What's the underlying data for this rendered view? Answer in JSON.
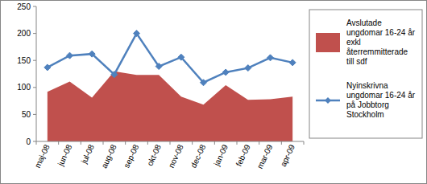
{
  "chart_data": {
    "type": "line",
    "categories": [
      "maj-08",
      "jun-08",
      "jul-08",
      "aug-08",
      "sep-08",
      "okt-08",
      "nov-08",
      "dec-08",
      "jan-09",
      "feb-09",
      "mar-09",
      "apr-09"
    ],
    "series": [
      {
        "name": "Avslutade ungdomar 16-24 år exkl återremmitterade till sdf",
        "type": "area",
        "color": "#c0504d",
        "values": [
          92,
          111,
          81,
          130,
          123,
          123,
          83,
          68,
          104,
          77,
          78,
          83
        ]
      },
      {
        "name": "Nyinskrivna ungdomar 16-24 år på Jobbtorg Stockholm",
        "type": "line",
        "color": "#4f81bd",
        "marker": "diamond",
        "values": [
          137,
          159,
          162,
          124,
          200,
          139,
          156,
          109,
          128,
          136,
          155,
          146
        ]
      }
    ],
    "ylim": [
      0,
      250
    ],
    "yticks": [
      0,
      50,
      100,
      150,
      200,
      250
    ],
    "grid": false,
    "legend": "right"
  }
}
